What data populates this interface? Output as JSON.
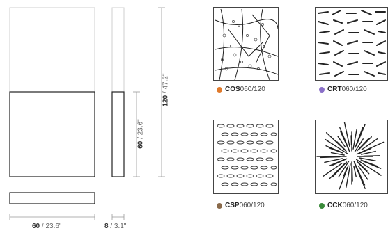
{
  "dimensions": {
    "height_total": {
      "main": "120",
      "sep": " / ",
      "alt": "47.2\""
    },
    "height_half": {
      "main": "60",
      "sep": " / ",
      "alt": "23.6\""
    },
    "width": {
      "main": "60",
      "sep": " / ",
      "alt": "23.6\""
    },
    "depth": {
      "main": "8",
      "sep": " / ",
      "alt": "3.1\""
    }
  },
  "swatches": [
    {
      "prefix": "COS",
      "suffix": "060/120",
      "color": "#e07a2b",
      "pattern": "branch-dots"
    },
    {
      "prefix": "CRT",
      "suffix": "060/120",
      "color": "#8a6fc8",
      "pattern": "tick-marks"
    },
    {
      "prefix": "CSP",
      "suffix": "060/120",
      "color": "#8a6a4a",
      "pattern": "ovals-rows"
    },
    {
      "prefix": "CCK",
      "suffix": "060/120",
      "color": "#3a8a3a",
      "pattern": "radial-burst"
    }
  ]
}
